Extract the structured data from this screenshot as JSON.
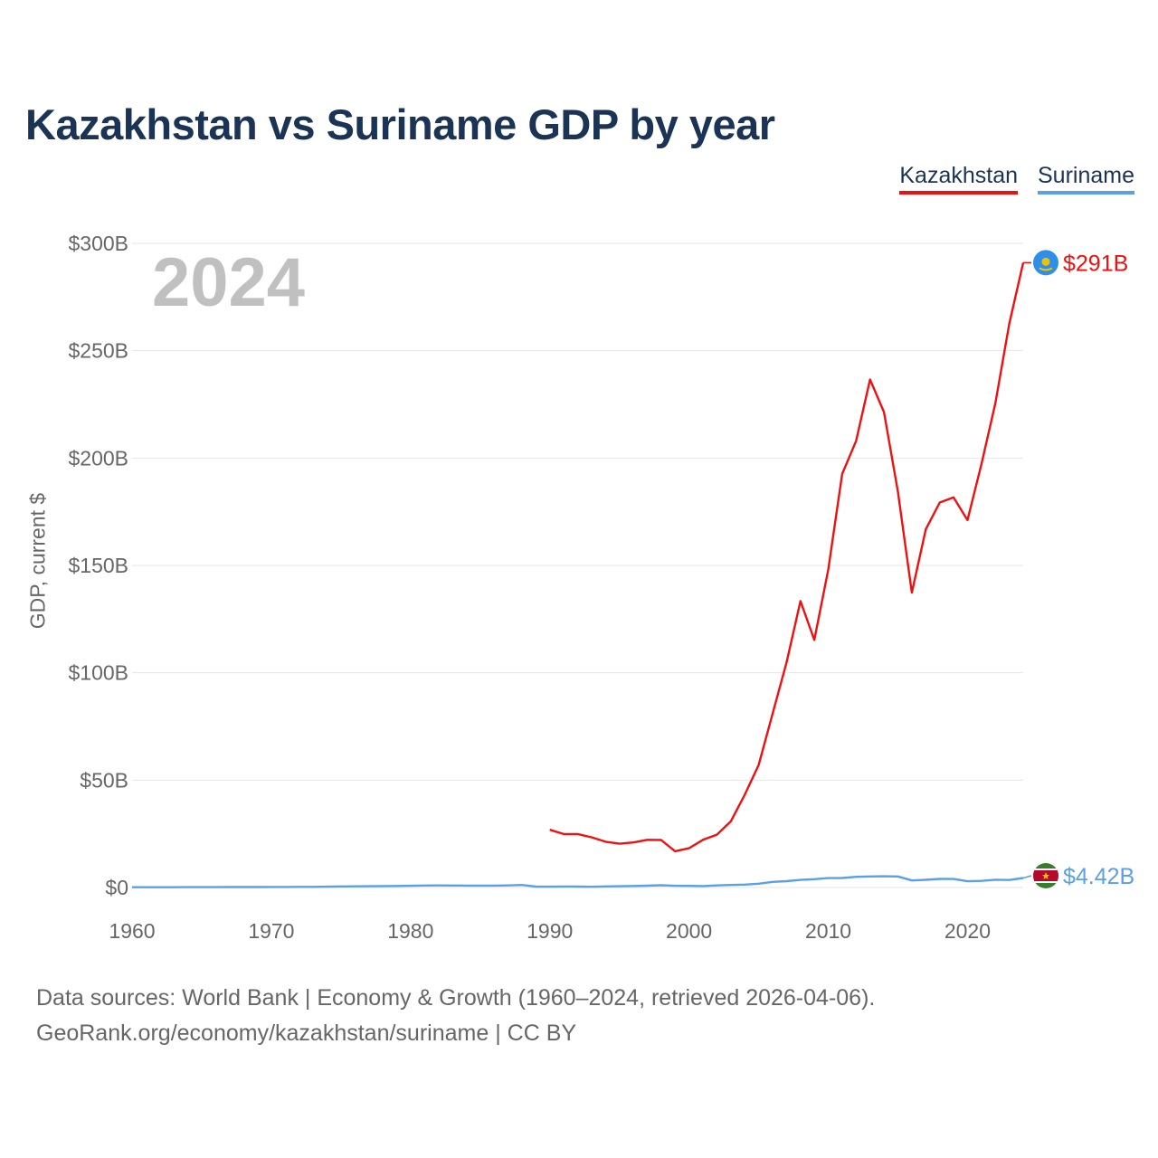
{
  "colors": {
    "kazakhstan": "#ee1111",
    "suriname": "#5aa0e6",
    "grid": "#e6e6e6",
    "axis": "#555555",
    "year": "#c0c0c0"
  },
  "legend": {
    "kazakhstan": "Kazakhstan",
    "suriname": "Suriname"
  },
  "year_watermark": "2024",
  "end_labels": {
    "kazakhstan": "$291B",
    "suriname": "$4.42B"
  },
  "source": {
    "line1": "Data sources: World Bank | Economy & Growth (1960–2024, retrieved 2026-04-06).",
    "line2": "GeoRank.org/economy/kazakhstan/suriname | CC BY"
  },
  "chart_data": {
    "type": "line",
    "title": "Kazakhstan vs Suriname GDP by year",
    "xlabel": "",
    "ylabel": "GDP, current $",
    "xlim": [
      1960,
      2024
    ],
    "ylim": [
      0,
      300
    ],
    "y_unit": "billions USD",
    "xticks": [
      1960,
      1970,
      1980,
      1990,
      2000,
      2010,
      2020
    ],
    "yticks": [
      0,
      50,
      100,
      150,
      200,
      250,
      300
    ],
    "ytick_labels": [
      "$0",
      "$50B",
      "$100B",
      "$150B",
      "$200B",
      "$250B",
      "$300B"
    ],
    "grid": true,
    "legend_position": "top-right",
    "series": [
      {
        "name": "Kazakhstan",
        "x": [
          1990,
          1991,
          1992,
          1993,
          1994,
          1995,
          1996,
          1997,
          1998,
          1999,
          2000,
          2001,
          2002,
          2003,
          2004,
          2005,
          2006,
          2007,
          2008,
          2009,
          2010,
          2011,
          2012,
          2013,
          2014,
          2015,
          2016,
          2017,
          2018,
          2019,
          2020,
          2021,
          2022,
          2023,
          2024
        ],
        "values": [
          26.9,
          24.9,
          24.9,
          23.4,
          21.3,
          20.4,
          21.0,
          22.2,
          22.1,
          16.9,
          18.3,
          22.2,
          24.6,
          30.8,
          43.2,
          57.1,
          81.0,
          104.8,
          133.4,
          115.3,
          148.0,
          192.6,
          208.0,
          236.6,
          221.4,
          184.4,
          137.3,
          166.8,
          179.3,
          181.7,
          171.1,
          197.1,
          225.5,
          262.6,
          291.0
        ]
      },
      {
        "name": "Suriname",
        "x": [
          1960,
          1961,
          1962,
          1963,
          1964,
          1965,
          1966,
          1967,
          1968,
          1969,
          1970,
          1971,
          1972,
          1973,
          1974,
          1975,
          1976,
          1977,
          1978,
          1979,
          1980,
          1981,
          1982,
          1983,
          1984,
          1985,
          1986,
          1987,
          1988,
          1989,
          1990,
          1991,
          1992,
          1993,
          1994,
          1995,
          1996,
          1997,
          1998,
          1999,
          2000,
          2001,
          2002,
          2003,
          2004,
          2005,
          2006,
          2007,
          2008,
          2009,
          2010,
          2011,
          2012,
          2013,
          2014,
          2015,
          2016,
          2017,
          2018,
          2019,
          2020,
          2021,
          2022,
          2023,
          2024
        ],
        "values": [
          0.11,
          0.12,
          0.13,
          0.14,
          0.15,
          0.17,
          0.18,
          0.2,
          0.21,
          0.23,
          0.26,
          0.27,
          0.29,
          0.31,
          0.39,
          0.49,
          0.53,
          0.6,
          0.68,
          0.73,
          0.8,
          0.91,
          0.95,
          0.92,
          0.9,
          0.88,
          0.9,
          0.97,
          1.18,
          0.42,
          0.39,
          0.45,
          0.41,
          0.33,
          0.5,
          0.6,
          0.72,
          0.83,
          1.05,
          0.78,
          0.77,
          0.66,
          0.97,
          1.18,
          1.35,
          1.79,
          2.63,
          2.94,
          3.53,
          3.88,
          4.37,
          4.42,
          4.98,
          5.15,
          5.24,
          5.13,
          3.29,
          3.59,
          3.99,
          3.98,
          2.91,
          3.08,
          3.62,
          3.48,
          4.42
        ]
      }
    ]
  }
}
